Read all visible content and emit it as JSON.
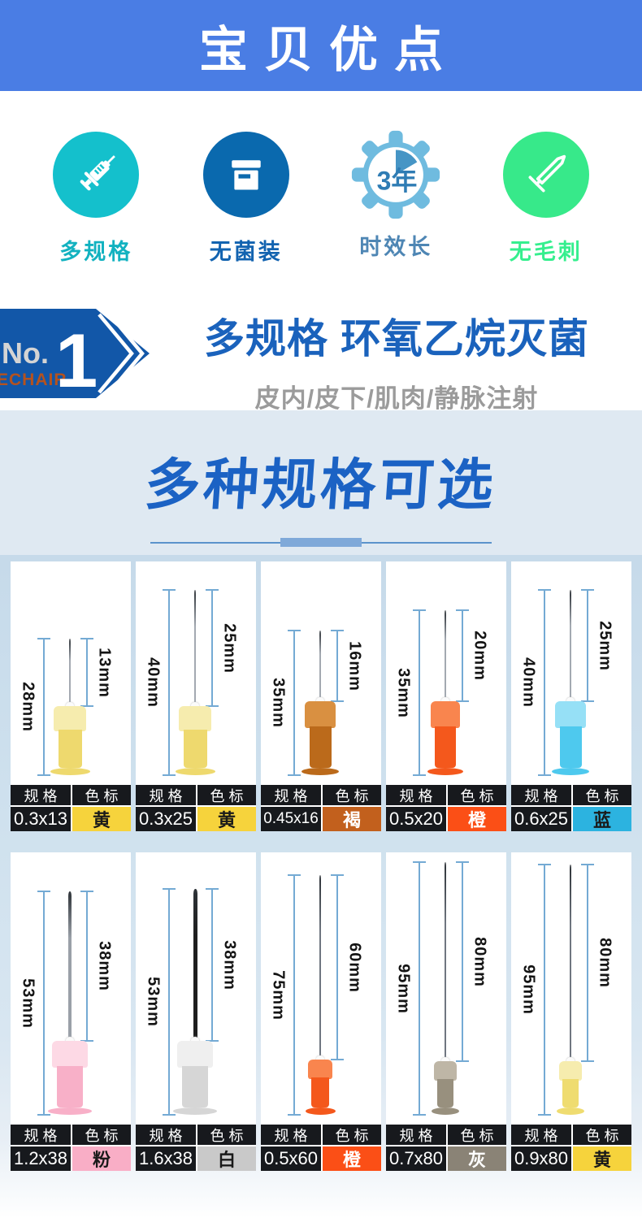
{
  "banner": {
    "title": "宝贝优点",
    "bg_color": "#4a7de4"
  },
  "features": [
    {
      "label": "多规格",
      "icon": "syringe-icon",
      "circle_color": "#14c0cc",
      "label_color": "#12b2c0"
    },
    {
      "label": "无菌装",
      "icon": "sterile-box-icon",
      "circle_color": "#0a69ae",
      "label_color": "#1263b0"
    },
    {
      "label": "时效长",
      "icon": "gear-clock-icon",
      "badge": "3年",
      "circle_color": "#6fbbdf",
      "label_color": "#4e86b4"
    },
    {
      "label": "无毛刺",
      "icon": "smooth-needle-icon",
      "circle_color": "#37e98a",
      "label_color": "#35ef8e"
    }
  ],
  "no1": {
    "prefix": "No.",
    "number": "1",
    "brand": "ECHAIR",
    "arrow_color": "#1257a8",
    "title": "多规格 环氧乙烷灭菌",
    "title_color": "#1a62bc",
    "subtitle": "皮内/皮下/肌肉/静脉注射"
  },
  "specs": {
    "title": "多种规格可选",
    "title_color": "#1b62c4",
    "table_headers": [
      "规格",
      "色标"
    ]
  },
  "cards": [
    {
      "spec": "0.3x13",
      "color_name": "黄",
      "total": "28mm",
      "needle": "13mm",
      "swatch": "#f6d33c",
      "swatch_text": "#1a1a1a",
      "cap": "#eed96e",
      "cap_light": "#f6ecae"
    },
    {
      "spec": "0.3x25",
      "color_name": "黄",
      "total": "40mm",
      "needle": "25mm",
      "swatch": "#f6d33c",
      "swatch_text": "#1a1a1a",
      "cap": "#eed96e",
      "cap_light": "#f6ecae"
    },
    {
      "spec": "0.45x16",
      "color_name": "褐",
      "total": "35mm",
      "needle": "16mm",
      "swatch": "#c2601d",
      "swatch_text": "#ffffff",
      "cap": "#bb6a1b",
      "cap_light": "#d99041"
    },
    {
      "spec": "0.5x20",
      "color_name": "橙",
      "total": "35mm",
      "needle": "20mm",
      "swatch": "#fb4f16",
      "swatch_text": "#ffffff",
      "cap": "#f4581c",
      "cap_light": "#f9854e"
    },
    {
      "spec": "0.6x25",
      "color_name": "蓝",
      "total": "40mm",
      "needle": "25mm",
      "swatch": "#2cb3e0",
      "swatch_text": "#1a1a1a",
      "cap": "#4ec9ee",
      "cap_light": "#96e0f6"
    },
    {
      "spec": "1.2x38",
      "color_name": "粉",
      "total": "53mm",
      "needle": "38mm",
      "swatch": "#f9aec6",
      "swatch_text": "#1a1a1a",
      "cap": "#f8b0c8",
      "cap_light": "#fdd9e5"
    },
    {
      "spec": "1.6x38",
      "color_name": "白",
      "total": "53mm",
      "needle": "38mm",
      "swatch": "#c9c9c9",
      "swatch_text": "#1a1a1a",
      "cap": "#d6d6d6",
      "cap_light": "#efefef"
    },
    {
      "spec": "0.5x60",
      "color_name": "橙",
      "total": "75mm",
      "needle": "60mm",
      "swatch": "#fb4f16",
      "swatch_text": "#ffffff",
      "cap": "#f4581c",
      "cap_light": "#f9854e"
    },
    {
      "spec": "0.7x80",
      "color_name": "灰",
      "total": "95mm",
      "needle": "80mm",
      "swatch": "#8a8376",
      "swatch_text": "#ffffff",
      "cap": "#98907e",
      "cap_light": "#beb6a6"
    },
    {
      "spec": "0.9x80",
      "color_name": "黄",
      "total": "95mm",
      "needle": "80mm",
      "swatch": "#f6d33c",
      "swatch_text": "#1a1a1a",
      "cap": "#efdc70",
      "cap_light": "#f6ecae"
    }
  ]
}
